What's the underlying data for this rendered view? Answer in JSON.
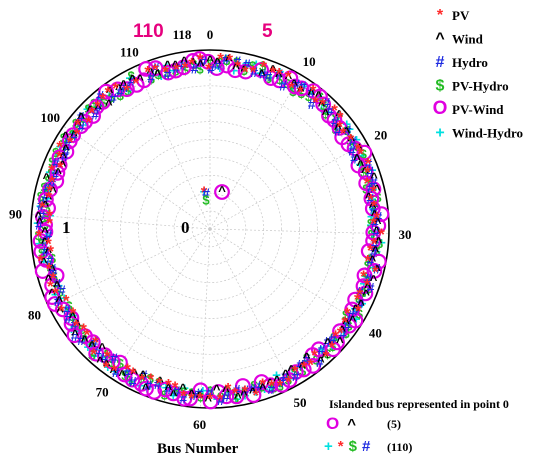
{
  "chart_data": {
    "type": "scatter",
    "subtype": "polar",
    "xlabel": "Bus Number",
    "theta_ticks": [
      "0",
      "10",
      "20",
      "30",
      "40",
      "50",
      "60",
      "70",
      "80",
      "90",
      "100",
      "110"
    ],
    "theta_end_label": "118",
    "bus_count": 118,
    "r_range": [
      0,
      1
    ],
    "grid": true,
    "center_label": "0",
    "radius_label": "1",
    "legend_position": "top-right",
    "series": [
      {
        "name": "PV",
        "symbol": "*",
        "color": "#ff2a2a"
      },
      {
        "name": "Wind",
        "symbol": "^",
        "color": "#000000"
      },
      {
        "name": "Hydro",
        "symbol": "#",
        "color": "#1e2be0"
      },
      {
        "name": "PV-Hydro",
        "symbol": "$",
        "color": "#22bb22"
      },
      {
        "name": "PV-Wind",
        "symbol": "O",
        "color": "#e000e0"
      },
      {
        "name": "Wind-Hydro",
        "symbol": "+",
        "color": "#00e0e0"
      }
    ],
    "annotations": [
      {
        "text": "110",
        "color": "#e6007e"
      },
      {
        "text": "5",
        "color": "#e6007e"
      }
    ],
    "islanded_points": [
      {
        "bus": 5,
        "series": [
          "PV-Wind",
          "Wind"
        ]
      },
      {
        "bus": 110,
        "series": [
          "Wind-Hydro",
          "PV",
          "PV-Hydro",
          "Hydro"
        ]
      }
    ],
    "islanded_note": {
      "title": "Islanded bus represented in point 0",
      "row1_symbols": "O ^",
      "row1_value": "(5)",
      "row2_symbols": "+ * $ #",
      "row2_value": "(110)"
    }
  }
}
